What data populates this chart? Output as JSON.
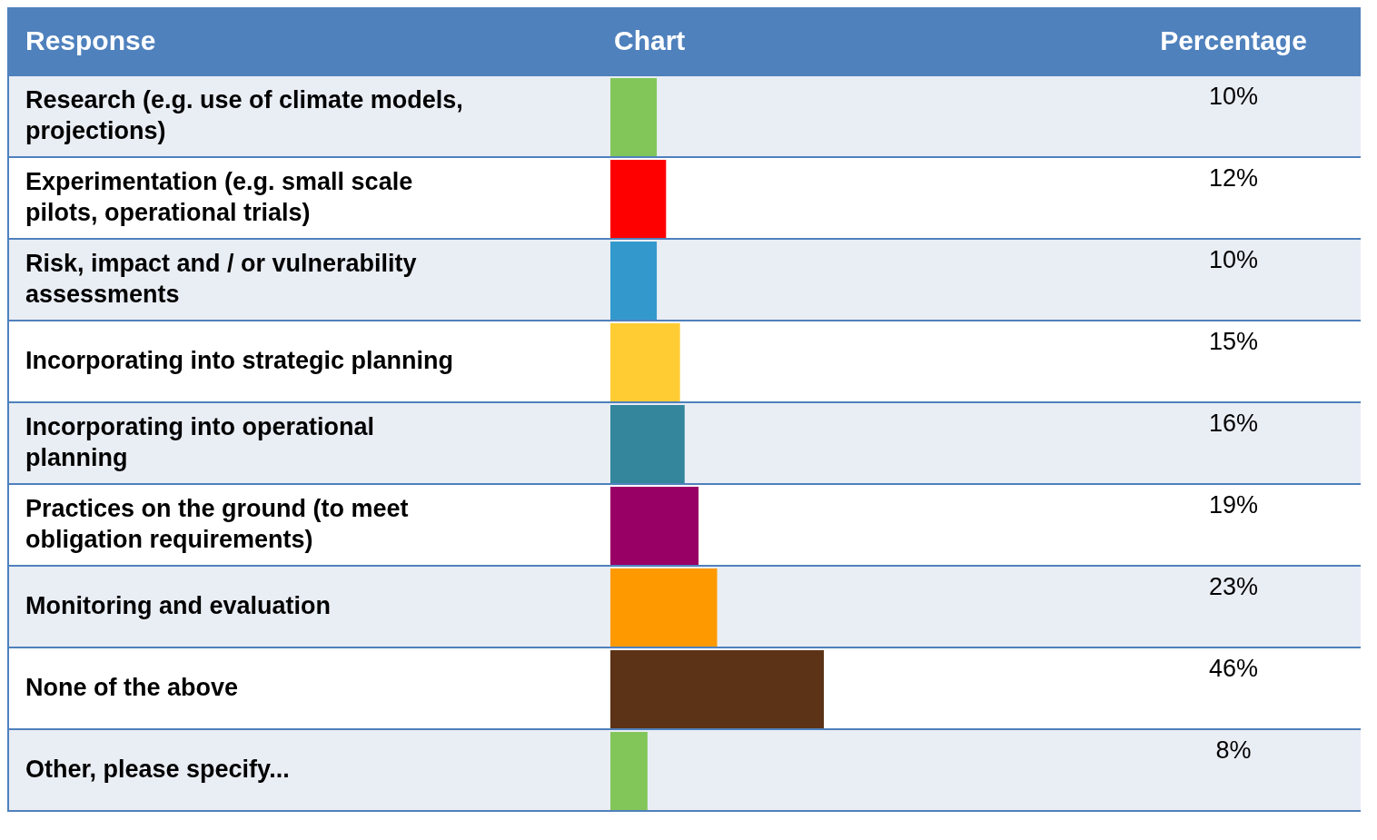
{
  "chart_data": {
    "type": "bar",
    "orientation": "horizontal",
    "ylabel": "Response",
    "title": "Chart",
    "annotations": [
      "Percentage"
    ],
    "categories": [
      "Research (e.g. use of climate models, projections)",
      "Experimentation (e.g. small scale pilots, operational trials)",
      "Risk, impact and / or vulnerability assessments",
      "Incorporating into strategic planning",
      "Incorporating into operational planning",
      "Practices on the ground (to meet obligation requirements)",
      "Monitoring and evaluation",
      "None of the above",
      "Other, please specify..."
    ],
    "values": [
      10,
      12,
      10,
      15,
      16,
      19,
      23,
      46,
      8
    ],
    "colors": [
      "#82c65a",
      "#ff0000",
      "#3399cc",
      "#ffcc33",
      "#33869c",
      "#990066",
      "#ff9900",
      "#5c3316",
      "#82c65a"
    ],
    "value_labels": [
      "10%",
      "12%",
      "10%",
      "15%",
      "16%",
      "19%",
      "23%",
      "46%",
      "8%"
    ]
  }
}
